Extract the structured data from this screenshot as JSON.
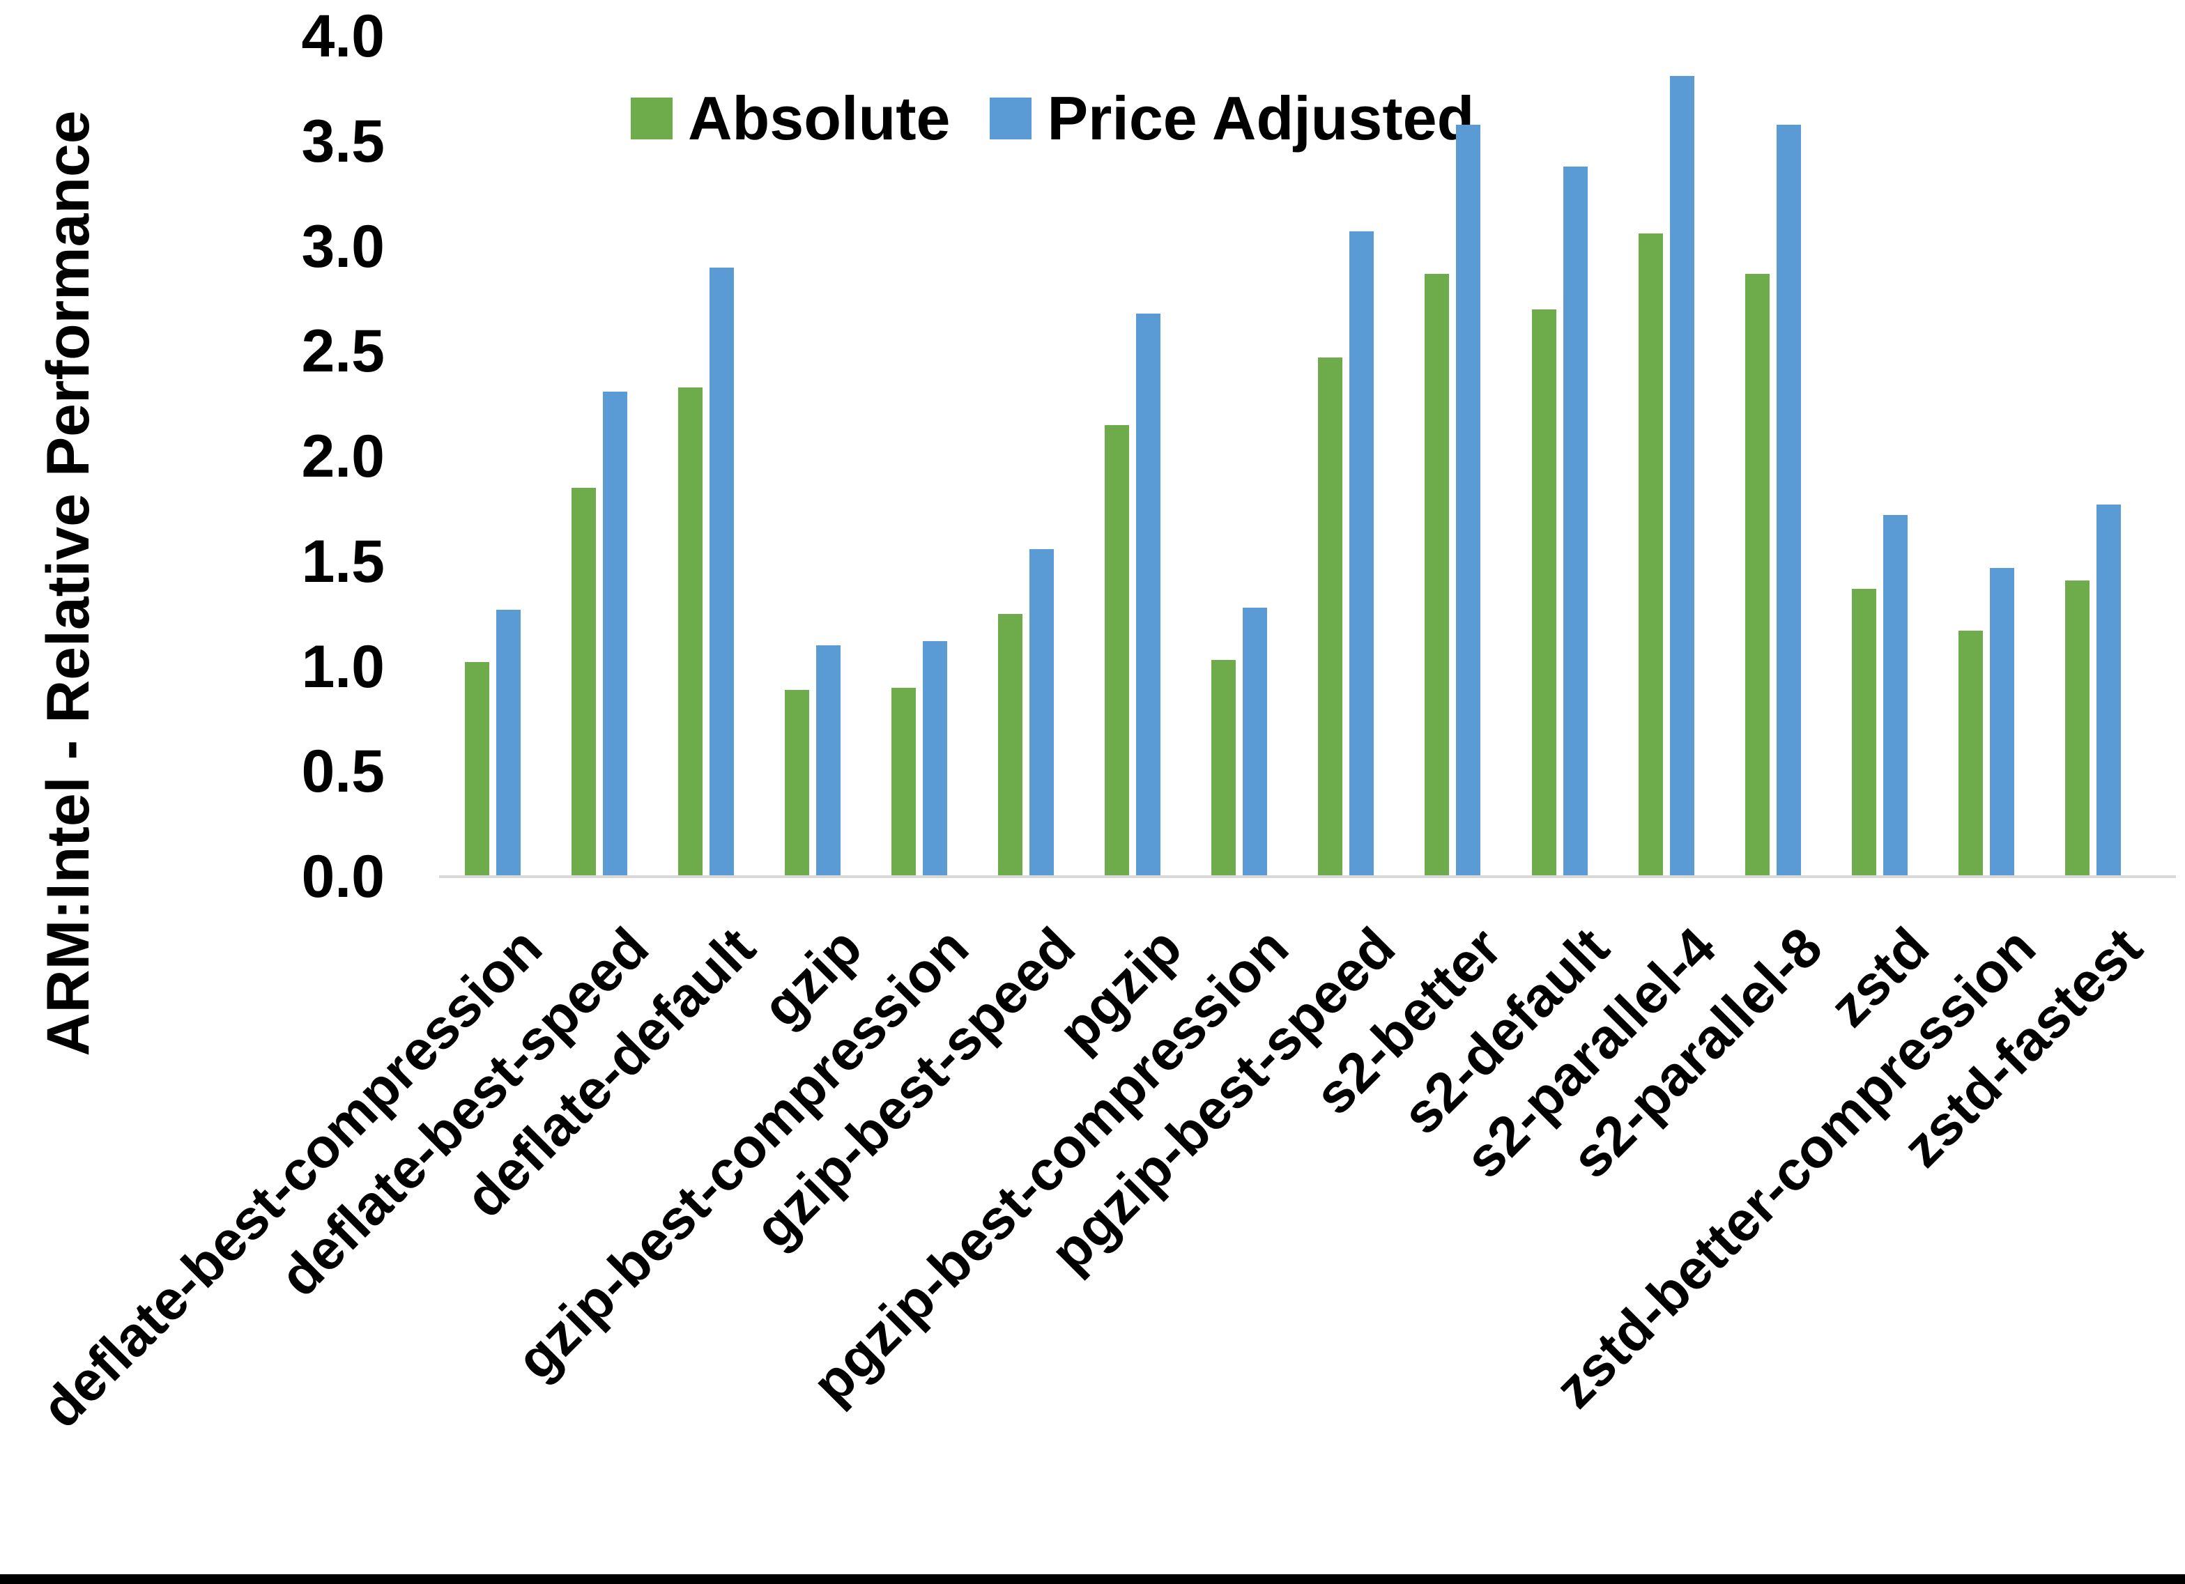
{
  "figure": {
    "ylabel": "ARM:Intel - Relative Performance"
  },
  "chart_data": {
    "type": "bar",
    "title": "",
    "xlabel": "",
    "ylabel": "ARM:Intel - Relative Performance",
    "ylim": [
      0,
      4
    ],
    "ytick_step": 0.5,
    "yticks": [
      "4.0",
      "3.5",
      "3.0",
      "2.5",
      "2.0",
      "1.5",
      "1.0",
      "0.5",
      "0.0"
    ],
    "grid": false,
    "legend_position": "top-center-inside",
    "categories": [
      "deflate-best-compression",
      "deflate-best-speed",
      "deflate-default",
      "gzip",
      "gzip-best-compression",
      "gzip-best-speed",
      "pgzip",
      "pgzip-best-compression",
      "pgzip-best-speed",
      "s2-better",
      "s2-default",
      "s2-parallel-4",
      "s2-parallel-8",
      "zstd",
      "zstd-better-compression",
      "zstd-fastest"
    ],
    "series": [
      {
        "name": "Absolute",
        "color": "#6EAC4B",
        "values": [
          1.02,
          1.85,
          2.33,
          0.89,
          0.9,
          1.25,
          2.15,
          1.03,
          2.47,
          2.87,
          2.7,
          3.06,
          2.87,
          1.37,
          1.17,
          1.41
        ]
      },
      {
        "name": "Price Adjusted",
        "color": "#5B9BD5",
        "values": [
          1.27,
          2.31,
          2.9,
          1.1,
          1.12,
          1.56,
          2.68,
          1.28,
          3.07,
          3.58,
          3.38,
          3.81,
          3.58,
          1.72,
          1.47,
          1.77
        ]
      }
    ],
    "axis_line_color": "#D9D9D9",
    "text_color": "#000000"
  }
}
